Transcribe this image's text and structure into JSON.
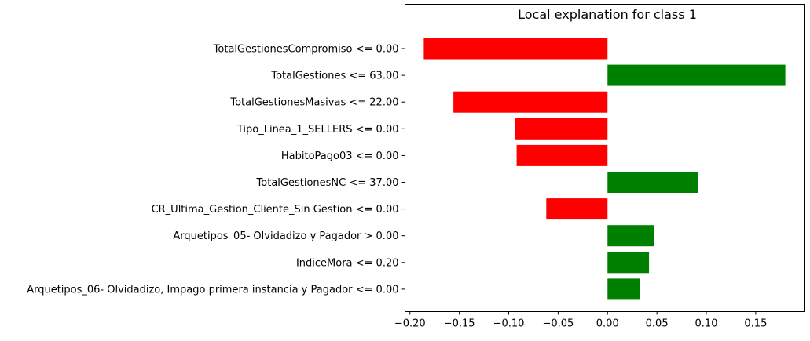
{
  "chart_data": {
    "type": "bar",
    "orientation": "horizontal",
    "title": "Local explanation for class 1",
    "xlabel": "",
    "ylabel": "",
    "categories": [
      "TotalGestionesCompromiso <= 0.00",
      "TotalGestiones <= 63.00",
      "TotalGestionesMasivas <= 22.00",
      "Tipo_Linea_1_SELLERS <= 0.00",
      "HabitoPago03 <= 0.00",
      "TotalGestionesNC <= 37.00",
      "CR_Ultima_Gestion_Cliente_Sin Gestion <= 0.00",
      "Arquetipos_05- Olvidadizo y Pagador > 0.00",
      "IndiceMora <= 0.20",
      "Arquetipos_06- Olvidadizo, Impago primera instancia y Pagador <= 0.00"
    ],
    "values": [
      -0.186,
      0.18,
      -0.156,
      -0.094,
      -0.092,
      0.092,
      -0.062,
      0.047,
      0.042,
      0.033
    ],
    "xlim": [
      -0.205,
      0.199
    ],
    "xticks": [
      -0.2,
      -0.15,
      -0.1,
      -0.05,
      0.0,
      0.05,
      0.1,
      0.15
    ],
    "xtick_labels": [
      "−0.20",
      "−0.15",
      "−0.10",
      "−0.05",
      "0.00",
      "0.05",
      "0.10",
      "0.15"
    ],
    "grid": false,
    "colors": {
      "positive": "#008000",
      "negative": "#ff0000",
      "axis": "#000000"
    }
  }
}
